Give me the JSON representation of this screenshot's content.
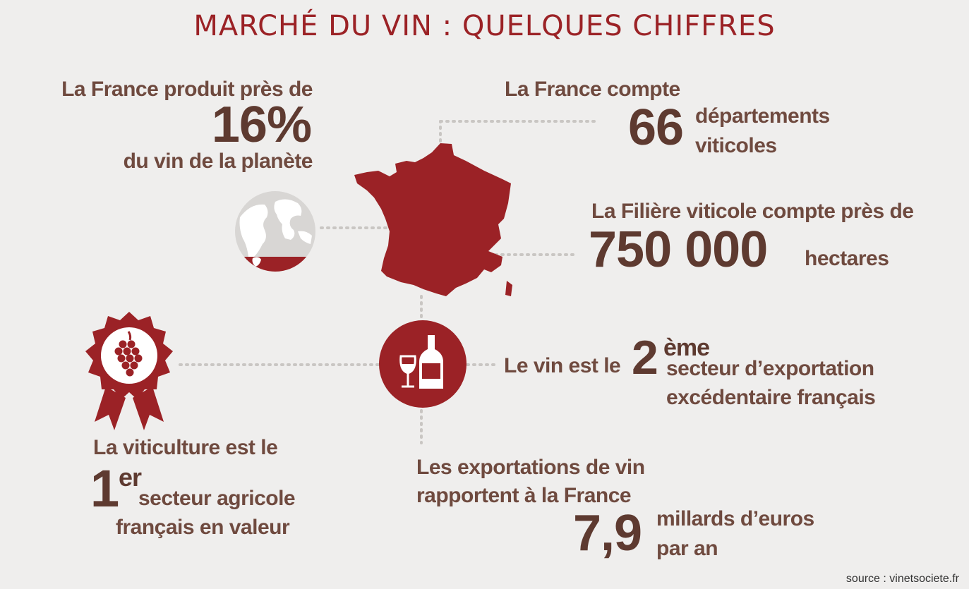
{
  "title": "MARCHÉ DU VIN : QUELQUES CHIFFRES",
  "colors": {
    "accent": "#9b2226",
    "text": "#6f4a3f",
    "number": "#5e3a30",
    "background": "#efeeed",
    "globe": "#d8d6d4"
  },
  "stat_production": {
    "line1": "La France produit près de",
    "number": "16%",
    "line2": "du vin de la planète"
  },
  "stat_departments": {
    "line1": "La France compte",
    "number": "66",
    "line2": "départements",
    "line3": "viticoles"
  },
  "stat_hectares": {
    "line1": "La Filière viticole compte près de",
    "number": "750 000",
    "unit": "hectares"
  },
  "stat_export_rank": {
    "prefix": "Le vin est le",
    "number": "2",
    "suffix": "ème",
    "line2": "secteur d’exportation",
    "line3": "excédentaire français"
  },
  "stat_agriculture": {
    "line1": "La viticulture est le",
    "number": "1",
    "suffix": "er",
    "line2": "secteur agricole",
    "line3": "français en valeur"
  },
  "stat_export_value": {
    "line1": "Les exportations de vin",
    "line2": "rapportent à la France",
    "number": "7,9",
    "unit1": "millards d’euros",
    "unit2": "par an"
  },
  "icons": [
    "globe-icon",
    "france-map-icon",
    "grape-medal-icon",
    "wine-glass-bottle-icon"
  ],
  "source": "source : vinetsociete.fr"
}
